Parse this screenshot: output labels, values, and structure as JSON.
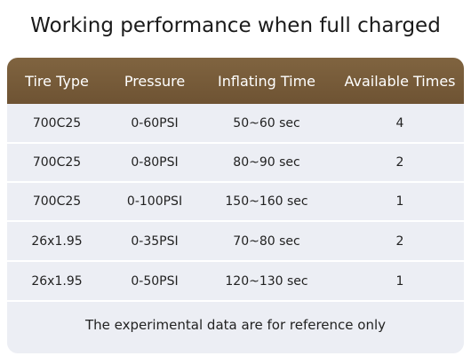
{
  "header": {
    "title": "Working performance when full charged"
  },
  "table": {
    "columns": [
      "Tire Type",
      "Pressure",
      "Inflating Time",
      "Available Times"
    ],
    "rows": [
      [
        "700C25",
        "0-60PSI",
        "50~60 sec",
        "4"
      ],
      [
        "700C25",
        "0-80PSI",
        "80~90 sec",
        "2"
      ],
      [
        "700C25",
        "0-100PSI",
        "150~160 sec",
        "1"
      ],
      [
        "26x1.95",
        "0-35PSI",
        "70~80 sec",
        "2"
      ],
      [
        "26x1.95",
        "0-50PSI",
        "120~130 sec",
        "1"
      ]
    ]
  },
  "footer": {
    "note": "The experimental data are for reference only"
  }
}
